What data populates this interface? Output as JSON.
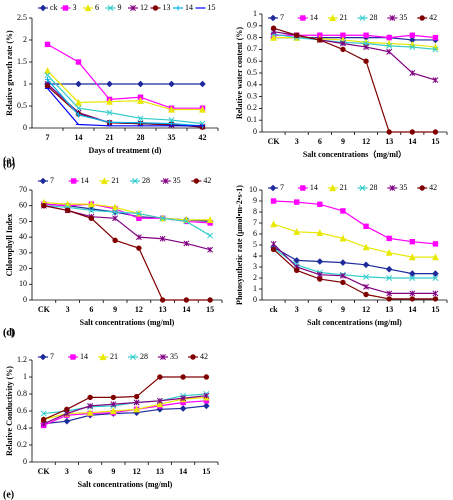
{
  "chart_data": [
    {
      "type": "line",
      "panel_label": "(a)",
      "xlabel": "Days of treatment (d)",
      "ylabel": "Relative growth rate (%)",
      "categories": [
        "7",
        "14",
        "21",
        "28",
        "35",
        "42"
      ],
      "ylim": [
        0,
        2.5
      ],
      "yticks": [
        0,
        0.5,
        1,
        1.5,
        2,
        2.5
      ],
      "series": [
        {
          "name": "ck",
          "color": "#1f2a9c",
          "marker": "diamond",
          "values": [
            1,
            1,
            1,
            1,
            1,
            1
          ]
        },
        {
          "name": "3",
          "color": "#ff00ff",
          "marker": "square",
          "values": [
            1.9,
            1.5,
            0.65,
            0.7,
            0.45,
            0.45
          ]
        },
        {
          "name": "6",
          "color": "#e8e800",
          "marker": "triangle",
          "values": [
            1.3,
            0.58,
            0.6,
            0.62,
            0.42,
            0.42
          ]
        },
        {
          "name": "9",
          "color": "#33cccc",
          "marker": "x",
          "values": [
            1.2,
            0.45,
            0.35,
            0.22,
            0.18,
            0.1
          ]
        },
        {
          "name": "12",
          "color": "#800080",
          "marker": "star",
          "values": [
            1.0,
            0.35,
            0.12,
            0.1,
            0.07,
            0.03
          ]
        },
        {
          "name": "13",
          "color": "#800000",
          "marker": "circle",
          "values": [
            0.95,
            0.32,
            0.12,
            0.1,
            0.08,
            0.02
          ]
        },
        {
          "name": "14",
          "color": "#00b0f0",
          "marker": "plus",
          "values": [
            1.1,
            0.3,
            0.13,
            0.12,
            0.1,
            0.05
          ]
        },
        {
          "name": "15",
          "color": "#0000ff",
          "marker": "dash",
          "values": [
            0.9,
            0.08,
            0.05,
            0.05,
            0.05,
            0.05
          ]
        }
      ]
    },
    {
      "type": "line",
      "panel_label": "(b)",
      "xlabel": "Salt concentrations（mg/ml）",
      "ylabel": "Relative water content (%)",
      "categories": [
        "CK",
        "3",
        "6",
        "9",
        "12",
        "13",
        "14",
        "15"
      ],
      "ylim": [
        0,
        1
      ],
      "yticks": [
        0,
        0.1,
        0.2,
        0.3,
        0.4,
        0.5,
        0.6,
        0.7,
        0.8,
        0.9,
        1
      ],
      "series": [
        {
          "name": "7",
          "color": "#1f2a9c",
          "marker": "diamond",
          "values": [
            0.8,
            0.8,
            0.8,
            0.8,
            0.8,
            0.8,
            0.78,
            0.78
          ]
        },
        {
          "name": "14",
          "color": "#ff00ff",
          "marker": "square",
          "values": [
            0.82,
            0.82,
            0.82,
            0.82,
            0.82,
            0.8,
            0.82,
            0.8
          ]
        },
        {
          "name": "21",
          "color": "#e8e800",
          "marker": "triangle",
          "values": [
            0.8,
            0.8,
            0.79,
            0.78,
            0.76,
            0.75,
            0.74,
            0.72
          ]
        },
        {
          "name": "28",
          "color": "#33cccc",
          "marker": "x",
          "values": [
            0.83,
            0.8,
            0.78,
            0.76,
            0.75,
            0.73,
            0.72,
            0.7
          ]
        },
        {
          "name": "35",
          "color": "#800080",
          "marker": "star",
          "values": [
            0.85,
            0.82,
            0.78,
            0.75,
            0.72,
            0.68,
            0.5,
            0.44
          ]
        },
        {
          "name": "42",
          "color": "#800000",
          "marker": "circle",
          "values": [
            0.88,
            0.82,
            0.78,
            0.7,
            0.6,
            0,
            0,
            0
          ]
        }
      ]
    },
    {
      "type": "line",
      "panel_label": "(c)",
      "xlabel": "Salt concentrations (mg/ml)",
      "ylabel": "Chlorophyll Index",
      "categories": [
        "CK",
        "3",
        "6",
        "9",
        "12",
        "13",
        "14",
        "15"
      ],
      "ylim": [
        0,
        70
      ],
      "yticks": [
        0,
        10,
        20,
        30,
        40,
        50,
        60,
        70
      ],
      "series": [
        {
          "name": "7",
          "color": "#1f2a9c",
          "marker": "diamond",
          "values": [
            61,
            60,
            58,
            56,
            53,
            52,
            51,
            50
          ]
        },
        {
          "name": "14",
          "color": "#ff00ff",
          "marker": "square",
          "values": [
            61,
            60,
            61,
            58,
            52,
            52,
            50,
            49
          ]
        },
        {
          "name": "21",
          "color": "#e8e800",
          "marker": "triangle",
          "values": [
            62,
            61,
            61,
            59,
            55,
            52,
            51,
            51
          ]
        },
        {
          "name": "28",
          "color": "#33cccc",
          "marker": "x",
          "values": [
            60,
            59,
            57,
            56,
            55,
            52,
            50,
            41
          ]
        },
        {
          "name": "35",
          "color": "#800080",
          "marker": "star",
          "values": [
            60,
            57,
            53,
            52,
            40,
            39,
            36,
            32
          ]
        },
        {
          "name": "42",
          "color": "#800000",
          "marker": "circle",
          "values": [
            60,
            57,
            52,
            38,
            33,
            0,
            0,
            0
          ]
        }
      ]
    },
    {
      "type": "line",
      "panel_label": "(d)",
      "xlabel": "Salt concentrations (mg/ml)",
      "ylabel": "Photosynthetic rate (μmol•m-2•s-1)",
      "categories": [
        "ck",
        "3",
        "6",
        "9",
        "12",
        "13",
        "14",
        "15"
      ],
      "ylim": [
        0,
        10
      ],
      "yticks": [
        0,
        1,
        2,
        3,
        4,
        5,
        6,
        7,
        8,
        9,
        10
      ],
      "series": [
        {
          "name": "7",
          "color": "#1f2a9c",
          "marker": "diamond",
          "values": [
            4.8,
            3.6,
            3.5,
            3.4,
            3.2,
            2.8,
            2.4,
            2.4
          ]
        },
        {
          "name": "14",
          "color": "#ff00ff",
          "marker": "square",
          "values": [
            9,
            8.9,
            8.7,
            8.1,
            6.7,
            5.6,
            5.3,
            5.1
          ]
        },
        {
          "name": "21",
          "color": "#e8e800",
          "marker": "triangle",
          "values": [
            6.9,
            6.2,
            6.1,
            5.6,
            4.8,
            4.3,
            3.9,
            3.9
          ]
        },
        {
          "name": "28",
          "color": "#33cccc",
          "marker": "x",
          "values": [
            4.7,
            3.2,
            2.5,
            2.3,
            2.1,
            2.0,
            2.0,
            2.0
          ]
        },
        {
          "name": "35",
          "color": "#800080",
          "marker": "star",
          "values": [
            5.1,
            3.0,
            2.3,
            2.2,
            1.2,
            0.6,
            0.6,
            0.6
          ]
        },
        {
          "name": "42",
          "color": "#800000",
          "marker": "circle",
          "values": [
            4.6,
            2.7,
            1.9,
            1.6,
            0.5,
            0.1,
            0.1,
            0.1
          ]
        }
      ]
    },
    {
      "type": "line",
      "panel_label": "(e)",
      "xlabel": "Salt concentrations (mg/ml)",
      "ylabel": "Relative Conductivity (%)",
      "categories": [
        "CK",
        "3",
        "6",
        "9",
        "12",
        "13",
        "14",
        "15"
      ],
      "ylim": [
        0,
        1.2
      ],
      "yticks": [
        0,
        0.2,
        0.4,
        0.6,
        0.8,
        1,
        1.2
      ],
      "series": [
        {
          "name": "7",
          "color": "#1f2a9c",
          "marker": "diamond",
          "values": [
            0.45,
            0.48,
            0.55,
            0.57,
            0.58,
            0.62,
            0.63,
            0.66
          ]
        },
        {
          "name": "14",
          "color": "#ff00ff",
          "marker": "square",
          "values": [
            0.43,
            0.55,
            0.57,
            0.58,
            0.62,
            0.66,
            0.7,
            0.72
          ]
        },
        {
          "name": "21",
          "color": "#e8e800",
          "marker": "triangle",
          "values": [
            0.5,
            0.57,
            0.58,
            0.6,
            0.62,
            0.68,
            0.74,
            0.76
          ]
        },
        {
          "name": "28",
          "color": "#33cccc",
          "marker": "x",
          "values": [
            0.57,
            0.6,
            0.65,
            0.66,
            0.7,
            0.72,
            0.78,
            0.8
          ]
        },
        {
          "name": "35",
          "color": "#800080",
          "marker": "star",
          "values": [
            0.45,
            0.57,
            0.66,
            0.68,
            0.7,
            0.72,
            0.75,
            0.78
          ]
        },
        {
          "name": "42",
          "color": "#800000",
          "marker": "circle",
          "values": [
            0.5,
            0.62,
            0.76,
            0.76,
            0.77,
            1.0,
            1.0,
            1.0
          ]
        }
      ]
    }
  ]
}
